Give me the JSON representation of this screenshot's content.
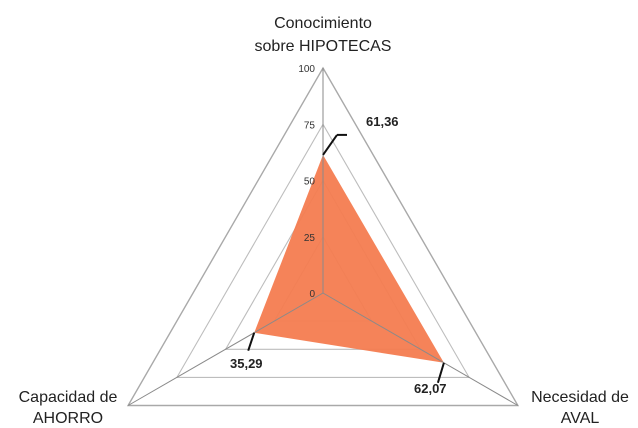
{
  "chart_data": {
    "type": "radar",
    "title": "",
    "axes": [
      {
        "label_lines": [
          "Conocimiento",
          "sobre HIPOTECAS"
        ]
      },
      {
        "label_lines": [
          "Necesidad de",
          "AVAL"
        ]
      },
      {
        "label_lines": [
          "Capacidad de",
          "AHORRO"
        ]
      }
    ],
    "series": [
      {
        "values": [
          61.36,
          62.07,
          35.29
        ],
        "labels": [
          "61,36",
          "62,07",
          "35,29"
        ],
        "color": "#f47c50"
      }
    ],
    "ticks": [
      0,
      25,
      50,
      75,
      100
    ],
    "tick_labels": [
      "0",
      "25",
      "50",
      "75",
      "100"
    ],
    "range": [
      0,
      100
    ],
    "grid": true,
    "grid_color": "#bdbdbd",
    "outer_grid_color": "#a9a9a9",
    "legend": "none"
  }
}
